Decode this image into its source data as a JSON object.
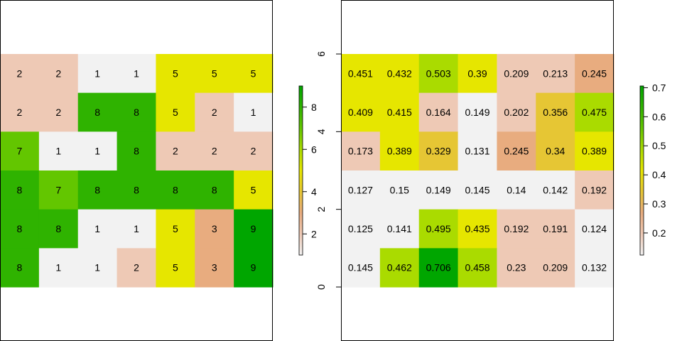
{
  "colors": {
    "scale": [
      "#F2F2F2",
      "#EEC9B5",
      "#E8AC7F",
      "#E6C634",
      "#E6E600",
      "#AADB00",
      "#63C600",
      "#2FB300",
      "#00A600"
    ],
    "frame": "#000000"
  },
  "chart_data": [
    {
      "type": "heatmap",
      "name": "categorical-raster",
      "rows": 6,
      "cols": 7,
      "values": [
        [
          2,
          2,
          1,
          1,
          5,
          5,
          5
        ],
        [
          2,
          2,
          8,
          8,
          5,
          2,
          1
        ],
        [
          7,
          1,
          1,
          8,
          2,
          2,
          2
        ],
        [
          8,
          7,
          8,
          8,
          8,
          8,
          5
        ],
        [
          8,
          8,
          1,
          1,
          5,
          3,
          9
        ],
        [
          8,
          1,
          1,
          2,
          5,
          3,
          9
        ]
      ],
      "cell_labels": [
        [
          "2",
          "2",
          "1",
          "1",
          "5",
          "5",
          "5"
        ],
        [
          "2",
          "2",
          "8",
          "8",
          "5",
          "2",
          "1"
        ],
        [
          "7",
          "1",
          "1",
          "8",
          "2",
          "2",
          "2"
        ],
        [
          "8",
          "7",
          "8",
          "8",
          "8",
          "8",
          "5"
        ],
        [
          "8",
          "8",
          "1",
          "1",
          "5",
          "3",
          "9"
        ],
        [
          "8",
          "1",
          "1",
          "2",
          "5",
          "3",
          "9"
        ]
      ],
      "value_range": [
        1,
        9
      ],
      "legend": {
        "range": [
          1,
          9
        ],
        "ticks": [
          2,
          4,
          6,
          8
        ],
        "tick_labels": [
          "2",
          "4",
          "6",
          "8"
        ]
      }
    },
    {
      "type": "heatmap",
      "name": "continuous-raster",
      "rows": 6,
      "cols": 7,
      "values": [
        [
          0.451,
          0.432,
          0.503,
          0.39,
          0.209,
          0.213,
          0.245
        ],
        [
          0.409,
          0.415,
          0.164,
          0.149,
          0.202,
          0.356,
          0.475
        ],
        [
          0.173,
          0.389,
          0.329,
          0.131,
          0.245,
          0.34,
          0.389
        ],
        [
          0.127,
          0.15,
          0.149,
          0.145,
          0.14,
          0.142,
          0.192
        ],
        [
          0.125,
          0.141,
          0.495,
          0.435,
          0.192,
          0.191,
          0.124
        ],
        [
          0.145,
          0.462,
          0.706,
          0.458,
          0.23,
          0.209,
          0.132
        ]
      ],
      "cell_labels": [
        [
          "0.451",
          "0.432",
          "0.503",
          "0.39",
          "0.209",
          "0.213",
          "0.245"
        ],
        [
          "0.409",
          "0.415",
          "0.164",
          "0.149",
          "0.202",
          "0.356",
          "0.475"
        ],
        [
          "0.173",
          "0.389",
          "0.329",
          "0.131",
          "0.245",
          "0.34",
          "0.389"
        ],
        [
          "0.127",
          "0.15",
          "0.149",
          "0.145",
          "0.14",
          "0.142",
          "0.192"
        ],
        [
          "0.125",
          "0.141",
          "0.495",
          "0.435",
          "0.192",
          "0.191",
          "0.124"
        ],
        [
          "0.145",
          "0.462",
          "0.706",
          "0.458",
          "0.23",
          "0.209",
          "0.132"
        ]
      ],
      "value_range": [
        0.124,
        0.706
      ],
      "y_axis": {
        "range": [
          0,
          6
        ],
        "ticks": [
          0,
          2,
          4,
          6
        ],
        "tick_labels": [
          "0",
          "2",
          "4",
          "6"
        ]
      },
      "legend": {
        "range": [
          0.124,
          0.706
        ],
        "ticks": [
          0.2,
          0.3,
          0.4,
          0.5,
          0.6,
          0.7
        ],
        "tick_labels": [
          "0.2",
          "0.3",
          "0.4",
          "0.5",
          "0.6",
          "0.7"
        ]
      }
    }
  ]
}
